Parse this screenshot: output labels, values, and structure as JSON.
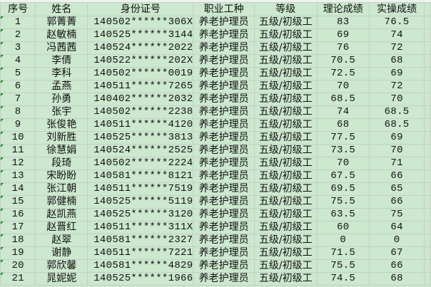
{
  "headers": [
    "序号",
    "姓名",
    "身份证号",
    "职业工种",
    "等级",
    "理论成绩",
    "实操成绩"
  ],
  "rows": [
    [
      "1",
      "郭菁菁",
      "140502******306X",
      "养老护理员",
      "五级/初级工",
      "83",
      "76.5"
    ],
    [
      "2",
      "赵敏楠",
      "140525******3144",
      "养老护理员",
      "五级/初级工",
      "69",
      "74"
    ],
    [
      "3",
      "冯茜茜",
      "140524******2022",
      "养老护理员",
      "五级/初级工",
      "76",
      "72"
    ],
    [
      "4",
      "李倩",
      "140522******202X",
      "养老护理员",
      "五级/初级工",
      "70.5",
      "68"
    ],
    [
      "5",
      "李科",
      "140502******0019",
      "养老护理员",
      "五级/初级工",
      "72.5",
      "69"
    ],
    [
      "6",
      "孟燕",
      "140511******7265",
      "养老护理员",
      "五级/初级工",
      "70",
      "72"
    ],
    [
      "7",
      "孙勇",
      "140402******2032",
      "养老护理员",
      "五级/初级工",
      "68.5",
      "70"
    ],
    [
      "8",
      "张宇",
      "140502******2238",
      "养老护理员",
      "五级/初级工",
      "74",
      "68.5"
    ],
    [
      "9",
      "张俊艳",
      "140511******4120",
      "养老护理员",
      "五级/初级工",
      "68",
      "68.5"
    ],
    [
      "10",
      "刘新胜",
      "140525******3813",
      "养老护理员",
      "五级/初级工",
      "77.5",
      "69"
    ],
    [
      "11",
      "徐慧娟",
      "140524******2525",
      "养老护理员",
      "五级/初级工",
      "73.5",
      "70"
    ],
    [
      "12",
      "段琦",
      "140502******2224",
      "养老护理员",
      "五级/初级工",
      "70",
      "71"
    ],
    [
      "13",
      "宋盼盼",
      "140581******8121",
      "养老护理员",
      "五级/初级工",
      "67.5",
      "66"
    ],
    [
      "14",
      "张江朝",
      "140511******7519",
      "养老护理员",
      "五级/初级工",
      "69.5",
      "65"
    ],
    [
      "15",
      "郭健楠",
      "140525******5119",
      "养老护理员",
      "五级/初级工",
      "75.5",
      "66"
    ],
    [
      "16",
      "赵凯燕",
      "140525******3120",
      "养老护理员",
      "五级/初级工",
      "63.5",
      "75"
    ],
    [
      "17",
      "赵晋红",
      "140511******311X",
      "养老护理员",
      "五级/初级工",
      "60",
      "64"
    ],
    [
      "18",
      "赵翠",
      "140581******2327",
      "养老护理员",
      "五级/初级工",
      "0",
      "0"
    ],
    [
      "19",
      "谢静",
      "140511******7221",
      "养老护理员",
      "五级/初级工",
      "71.5",
      "67"
    ],
    [
      "20",
      "郭欣馨",
      "140581******4829",
      "养老护理员",
      "五级/初级工",
      "75.5",
      "66"
    ],
    [
      "21",
      "晁妮妮",
      "140525******1966",
      "养老护理员",
      "五级/初级工",
      "74.5",
      "68"
    ]
  ]
}
